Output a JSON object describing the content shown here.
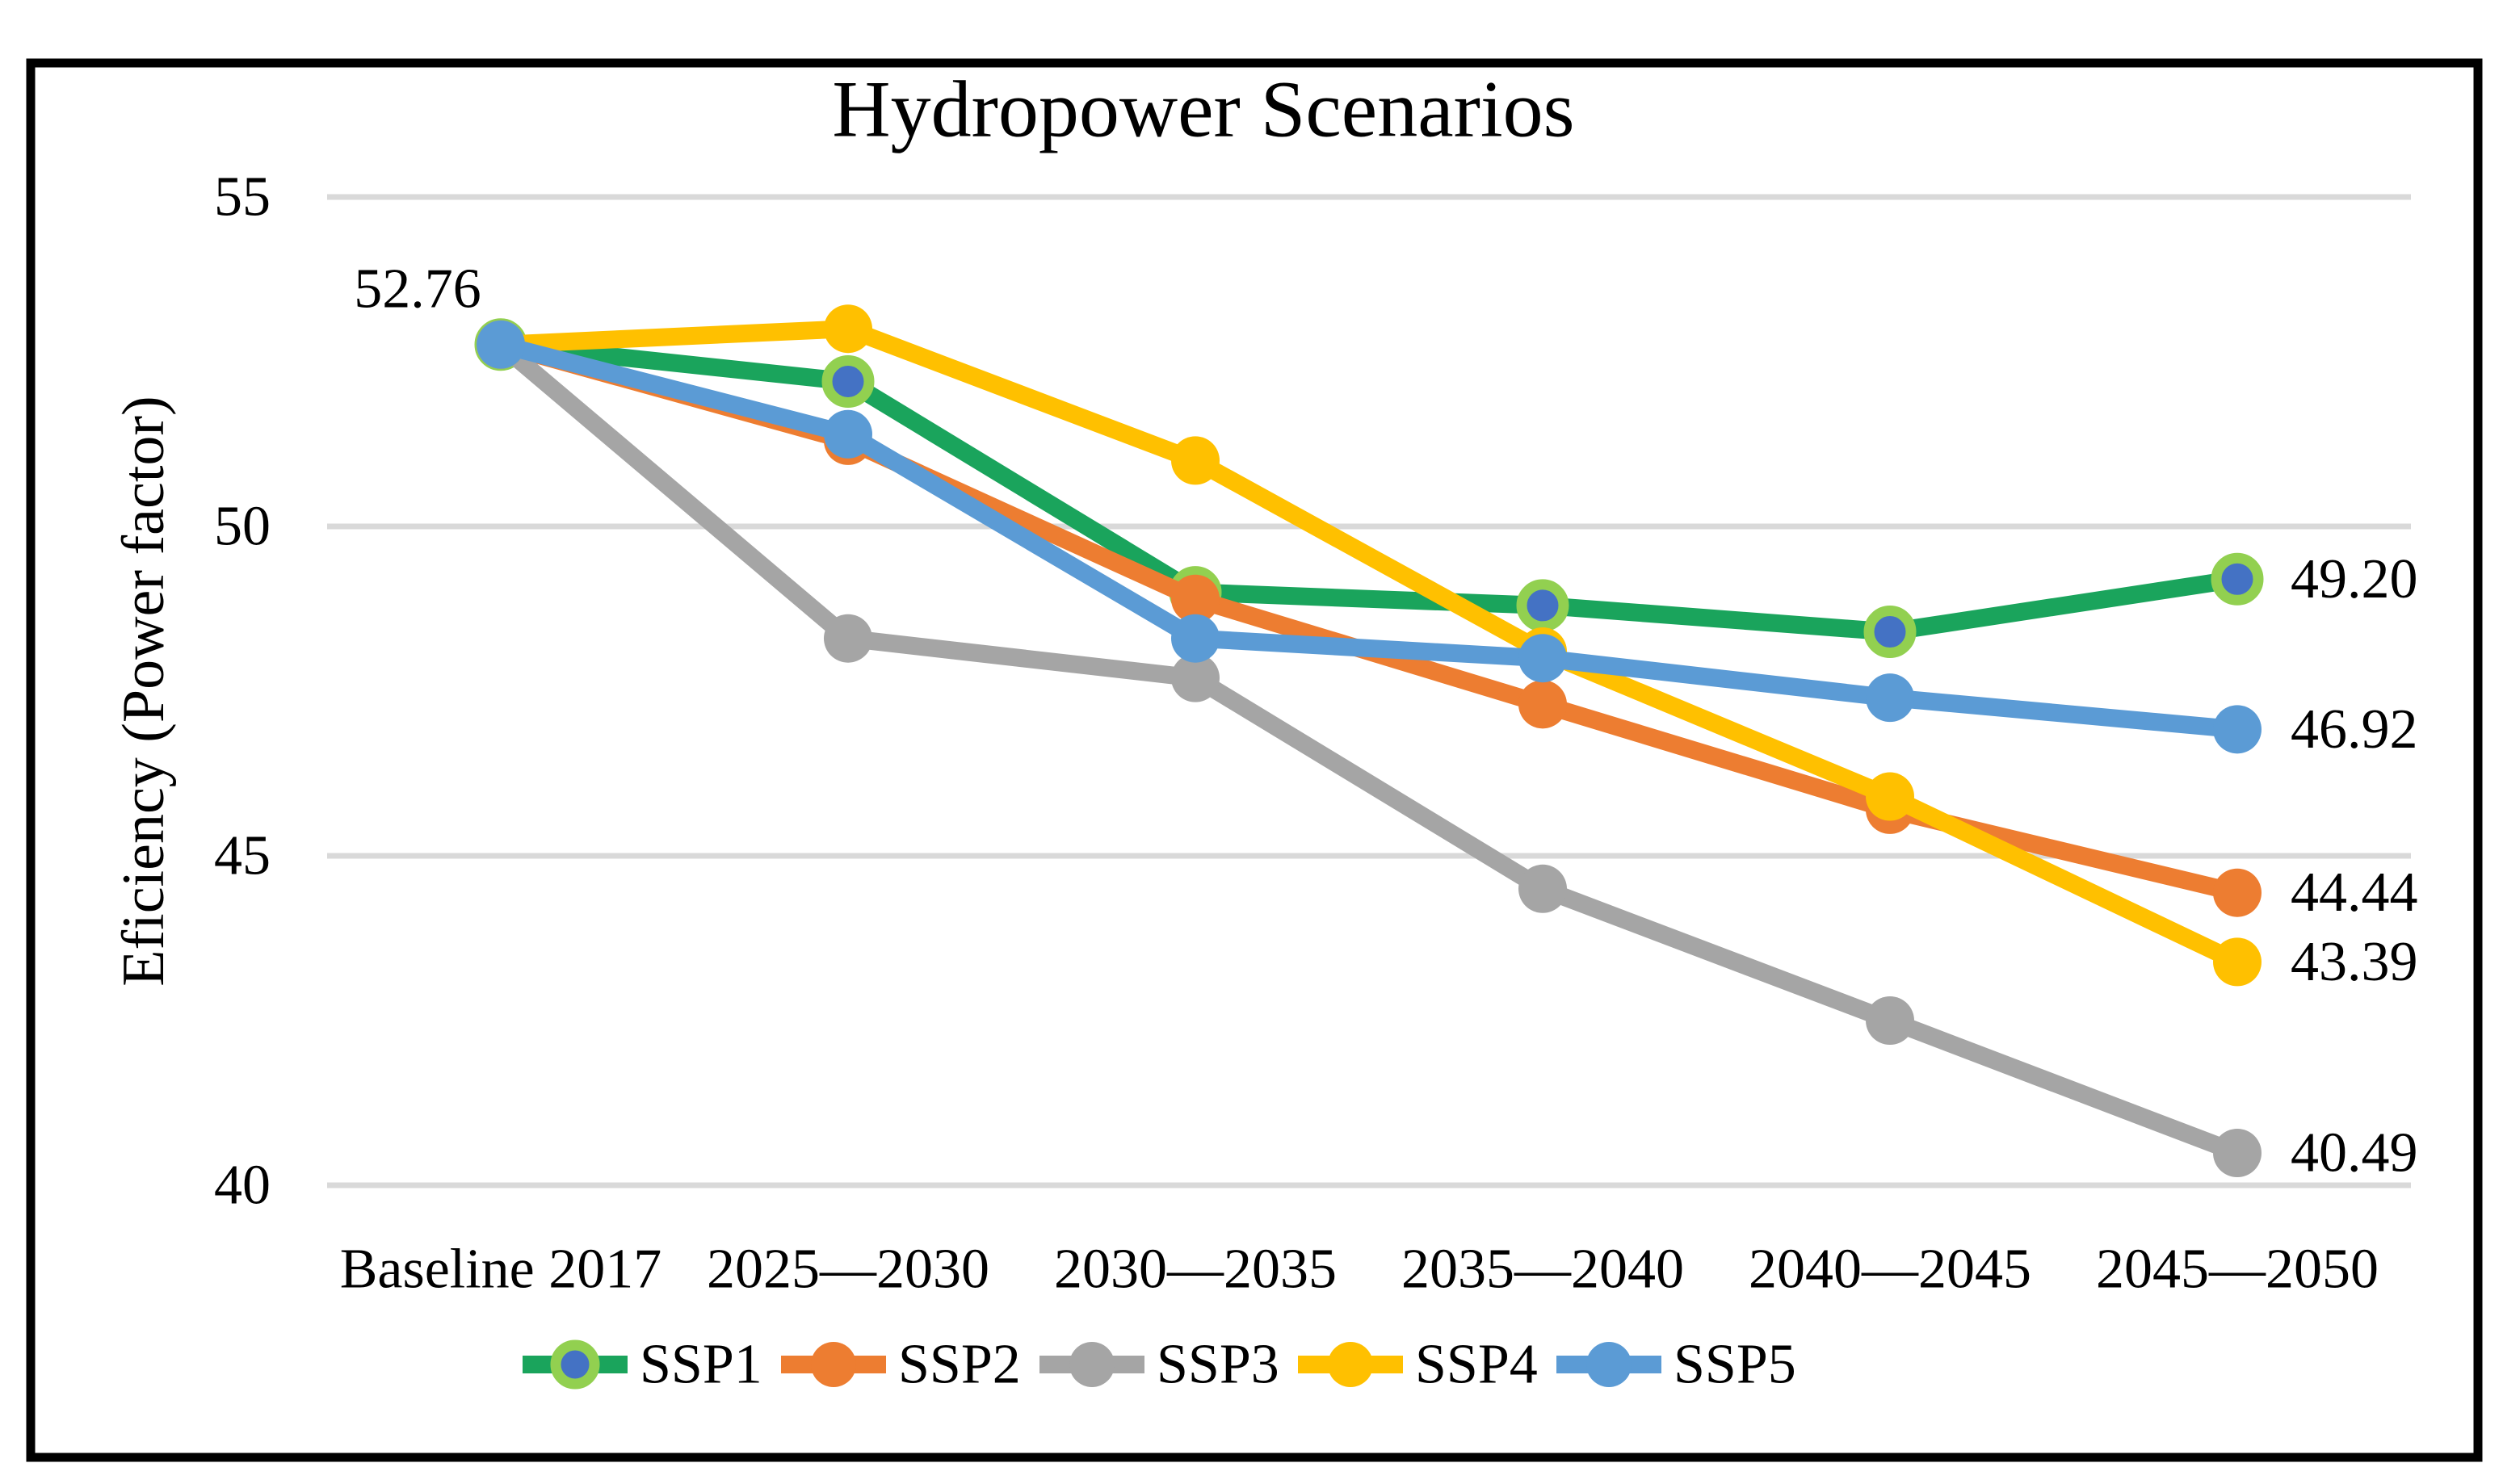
{
  "figure": {
    "title": "Hydropower Scenarios",
    "y_axis_title": "Eficiency (Power factor)",
    "start_annotation": "52.76"
  },
  "chart_data": {
    "type": "line",
    "title": "Hydropower Scenarios",
    "xlabel": "",
    "ylabel": "Eficiency (Power factor)",
    "categories": [
      "Baseline 2017",
      "2025—2030",
      "2030—2035",
      "2035—2040",
      "2040—2045",
      "2045—2050"
    ],
    "ylim": [
      40,
      55
    ],
    "yticks": [
      40,
      45,
      50,
      55
    ],
    "grid": true,
    "gridline_color": "#D9D9D9",
    "legend_position": "bottom",
    "start_label": "52.76",
    "series": [
      {
        "name": "SSP1",
        "color": "#1AA45C",
        "marker_style": "ringed",
        "marker_fill": "#4472C4",
        "marker_ring": "#92D050",
        "values": [
          52.76,
          52.2,
          49.0,
          48.8,
          48.4,
          49.2
        ],
        "end_label": "49.20"
      },
      {
        "name": "SSP2",
        "color": "#ED7D31",
        "marker_style": "solid",
        "values": [
          52.76,
          51.3,
          48.9,
          47.3,
          45.7,
          44.44
        ],
        "end_label": "44.44"
      },
      {
        "name": "SSP3",
        "color": "#A5A5A5",
        "marker_style": "solid",
        "values": [
          52.76,
          48.3,
          47.7,
          44.5,
          42.5,
          40.49
        ],
        "end_label": "40.49"
      },
      {
        "name": "SSP4",
        "color": "#FFC000",
        "marker_style": "solid",
        "values": [
          52.76,
          53.0,
          51.0,
          48.1,
          45.9,
          43.39
        ],
        "end_label": "43.39"
      },
      {
        "name": "SSP5",
        "color": "#5B9BD5",
        "marker_style": "solid",
        "values": [
          52.76,
          51.4,
          48.3,
          48.0,
          47.4,
          46.92
        ],
        "end_label": "46.92"
      }
    ]
  }
}
